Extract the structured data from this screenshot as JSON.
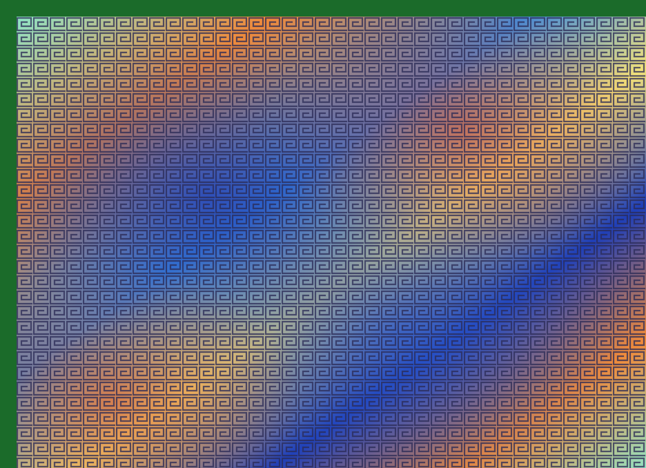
{
  "image": {
    "subject": "greek-key-meander-pattern",
    "frame_color": "#1b6b2a",
    "colormap": [
      "#1f3fb8",
      "#3f8fe0",
      "#8fe6c8",
      "#f2e27a",
      "#f08a3a",
      "#d8402a"
    ],
    "line_color": "#2a2a55"
  }
}
